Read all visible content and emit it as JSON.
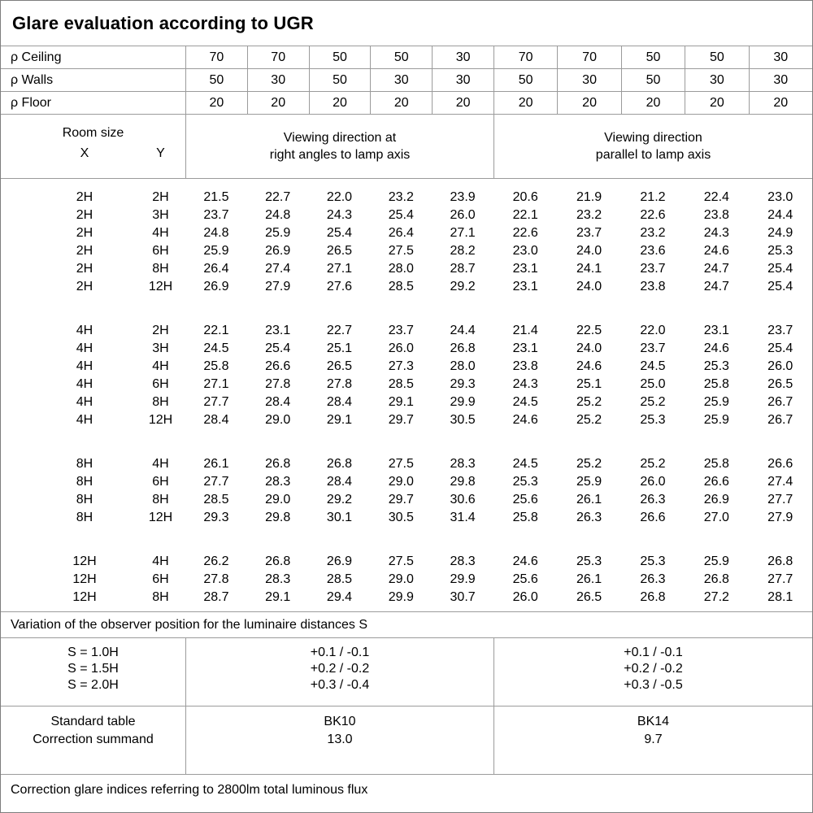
{
  "title": "Glare evaluation according to UGR",
  "reflectance": {
    "rows": [
      {
        "label": "ρ Ceiling",
        "values": [
          "70",
          "70",
          "50",
          "50",
          "30",
          "70",
          "70",
          "50",
          "50",
          "30"
        ]
      },
      {
        "label": "ρ Walls",
        "values": [
          "50",
          "30",
          "50",
          "30",
          "30",
          "50",
          "30",
          "50",
          "30",
          "30"
        ]
      },
      {
        "label": "ρ Floor",
        "values": [
          "20",
          "20",
          "20",
          "20",
          "20",
          "20",
          "20",
          "20",
          "20",
          "20"
        ]
      }
    ]
  },
  "header": {
    "room_size_label": "Room size",
    "x_label": "X",
    "y_label": "Y",
    "group1_line1": "Viewing direction at",
    "group1_line2": "right angles to lamp axis",
    "group2_line1": "Viewing direction",
    "group2_line2": "parallel to lamp axis"
  },
  "ugr_table": {
    "groups": [
      {
        "rows": [
          {
            "x": "2H",
            "y": "2H",
            "values": [
              "21.5",
              "22.7",
              "22.0",
              "23.2",
              "23.9",
              "20.6",
              "21.9",
              "21.2",
              "22.4",
              "23.0"
            ]
          },
          {
            "x": "2H",
            "y": "3H",
            "values": [
              "23.7",
              "24.8",
              "24.3",
              "25.4",
              "26.0",
              "22.1",
              "23.2",
              "22.6",
              "23.8",
              "24.4"
            ]
          },
          {
            "x": "2H",
            "y": "4H",
            "values": [
              "24.8",
              "25.9",
              "25.4",
              "26.4",
              "27.1",
              "22.6",
              "23.7",
              "23.2",
              "24.3",
              "24.9"
            ]
          },
          {
            "x": "2H",
            "y": "6H",
            "values": [
              "25.9",
              "26.9",
              "26.5",
              "27.5",
              "28.2",
              "23.0",
              "24.0",
              "23.6",
              "24.6",
              "25.3"
            ]
          },
          {
            "x": "2H",
            "y": "8H",
            "values": [
              "26.4",
              "27.4",
              "27.1",
              "28.0",
              "28.7",
              "23.1",
              "24.1",
              "23.7",
              "24.7",
              "25.4"
            ]
          },
          {
            "x": "2H",
            "y": "12H",
            "values": [
              "26.9",
              "27.9",
              "27.6",
              "28.5",
              "29.2",
              "23.1",
              "24.0",
              "23.8",
              "24.7",
              "25.4"
            ]
          }
        ]
      },
      {
        "rows": [
          {
            "x": "4H",
            "y": "2H",
            "values": [
              "22.1",
              "23.1",
              "22.7",
              "23.7",
              "24.4",
              "21.4",
              "22.5",
              "22.0",
              "23.1",
              "23.7"
            ]
          },
          {
            "x": "4H",
            "y": "3H",
            "values": [
              "24.5",
              "25.4",
              "25.1",
              "26.0",
              "26.8",
              "23.1",
              "24.0",
              "23.7",
              "24.6",
              "25.4"
            ]
          },
          {
            "x": "4H",
            "y": "4H",
            "values": [
              "25.8",
              "26.6",
              "26.5",
              "27.3",
              "28.0",
              "23.8",
              "24.6",
              "24.5",
              "25.3",
              "26.0"
            ]
          },
          {
            "x": "4H",
            "y": "6H",
            "values": [
              "27.1",
              "27.8",
              "27.8",
              "28.5",
              "29.3",
              "24.3",
              "25.1",
              "25.0",
              "25.8",
              "26.5"
            ]
          },
          {
            "x": "4H",
            "y": "8H",
            "values": [
              "27.7",
              "28.4",
              "28.4",
              "29.1",
              "29.9",
              "24.5",
              "25.2",
              "25.2",
              "25.9",
              "26.7"
            ]
          },
          {
            "x": "4H",
            "y": "12H",
            "values": [
              "28.4",
              "29.0",
              "29.1",
              "29.7",
              "30.5",
              "24.6",
              "25.2",
              "25.3",
              "25.9",
              "26.7"
            ]
          }
        ]
      },
      {
        "rows": [
          {
            "x": "8H",
            "y": "4H",
            "values": [
              "26.1",
              "26.8",
              "26.8",
              "27.5",
              "28.3",
              "24.5",
              "25.2",
              "25.2",
              "25.8",
              "26.6"
            ]
          },
          {
            "x": "8H",
            "y": "6H",
            "values": [
              "27.7",
              "28.3",
              "28.4",
              "29.0",
              "29.8",
              "25.3",
              "25.9",
              "26.0",
              "26.6",
              "27.4"
            ]
          },
          {
            "x": "8H",
            "y": "8H",
            "values": [
              "28.5",
              "29.0",
              "29.2",
              "29.7",
              "30.6",
              "25.6",
              "26.1",
              "26.3",
              "26.9",
              "27.7"
            ]
          },
          {
            "x": "8H",
            "y": "12H",
            "values": [
              "29.3",
              "29.8",
              "30.1",
              "30.5",
              "31.4",
              "25.8",
              "26.3",
              "26.6",
              "27.0",
              "27.9"
            ]
          }
        ]
      },
      {
        "rows": [
          {
            "x": "12H",
            "y": "4H",
            "values": [
              "26.2",
              "26.8",
              "26.9",
              "27.5",
              "28.3",
              "24.6",
              "25.3",
              "25.3",
              "25.9",
              "26.8"
            ]
          },
          {
            "x": "12H",
            "y": "6H",
            "values": [
              "27.8",
              "28.3",
              "28.5",
              "29.0",
              "29.9",
              "25.6",
              "26.1",
              "26.3",
              "26.8",
              "27.7"
            ]
          },
          {
            "x": "12H",
            "y": "8H",
            "values": [
              "28.7",
              "29.1",
              "29.4",
              "29.9",
              "30.7",
              "26.0",
              "26.5",
              "26.8",
              "27.2",
              "28.1"
            ]
          }
        ]
      }
    ]
  },
  "variation_note": "Variation of the observer position for the luminaire distances S",
  "observer_variation": {
    "rows": [
      {
        "label": "S = 1.0H",
        "group1": "+0.1 / -0.1",
        "group2": "+0.1 / -0.1"
      },
      {
        "label": "S = 1.5H",
        "group1": "+0.2 / -0.2",
        "group2": "+0.2 / -0.2"
      },
      {
        "label": "S = 2.0H",
        "group1": "+0.3 / -0.4",
        "group2": "+0.3 / -0.5"
      }
    ]
  },
  "standard": {
    "table_label": "Standard table",
    "summand_label": "Correction summand",
    "group1_table": "BK10",
    "group1_summand": "13.0",
    "group2_table": "BK14",
    "group2_summand": "9.7"
  },
  "footer_note": "Correction glare indices referring to 2800lm total luminous flux"
}
